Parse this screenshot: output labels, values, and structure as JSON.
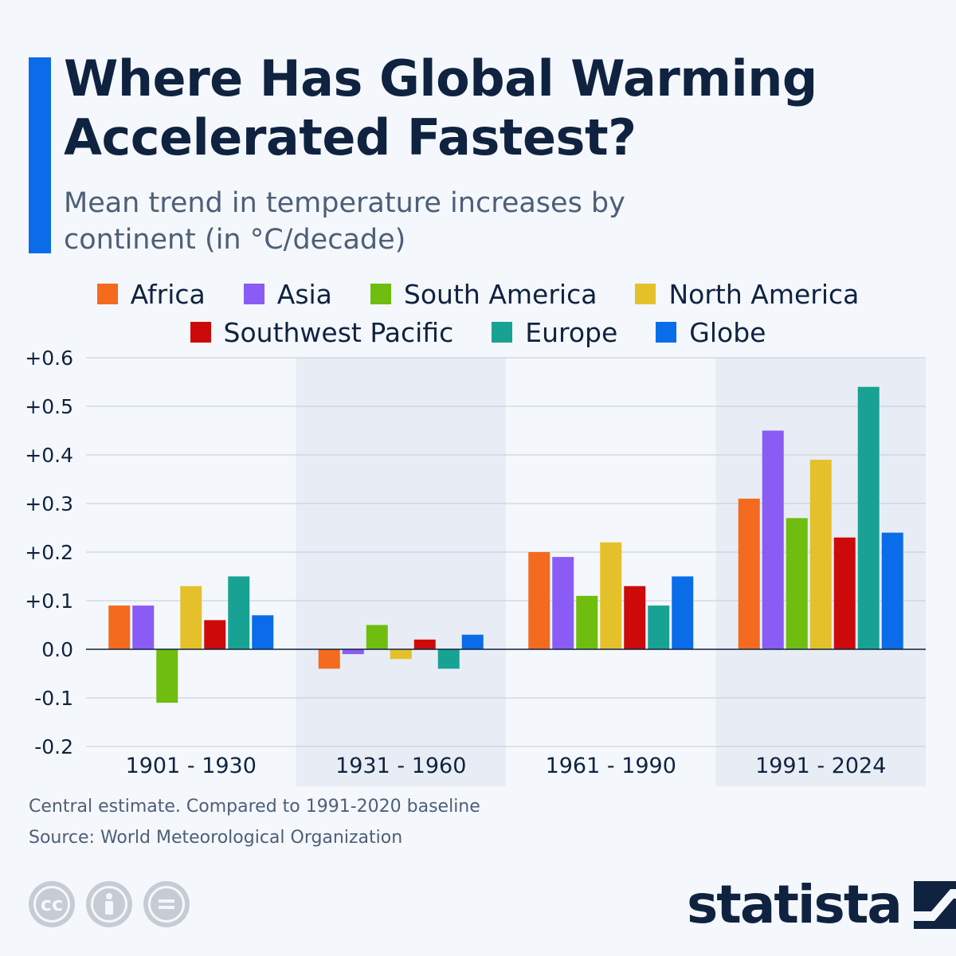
{
  "header": {
    "title": "Where Has Global Warming Accelerated Fastest?",
    "subtitle": "Mean trend in temperature increases by continent (in °C/decade)"
  },
  "legend": {
    "row1": [
      {
        "label": "Africa",
        "color": "#f46a1f"
      },
      {
        "label": "Asia",
        "color": "#8a5cf5"
      },
      {
        "label": "South America",
        "color": "#6fbd0e"
      },
      {
        "label": "North America",
        "color": "#e4c12b"
      }
    ],
    "row2": [
      {
        "label": "Southwest Pacific",
        "color": "#cc0a0a"
      },
      {
        "label": "Europe",
        "color": "#18a294"
      },
      {
        "label": "Globe",
        "color": "#0a6ce8"
      }
    ]
  },
  "chart_data": {
    "type": "bar",
    "categories": [
      "1901 - 1930",
      "1931 - 1960",
      "1961 - 1990",
      "1991 - 2024"
    ],
    "series": [
      {
        "name": "Africa",
        "color": "#f46a1f",
        "values": [
          0.09,
          -0.04,
          0.2,
          0.31
        ]
      },
      {
        "name": "Asia",
        "color": "#8a5cf5",
        "values": [
          0.09,
          -0.01,
          0.19,
          0.45
        ]
      },
      {
        "name": "South America",
        "color": "#6fbd0e",
        "values": [
          -0.11,
          0.05,
          0.11,
          0.27
        ]
      },
      {
        "name": "North America",
        "color": "#e4c12b",
        "values": [
          0.13,
          -0.02,
          0.22,
          0.39
        ]
      },
      {
        "name": "Southwest Pacific",
        "color": "#cc0a0a",
        "values": [
          0.06,
          0.02,
          0.13,
          0.23
        ]
      },
      {
        "name": "Europe",
        "color": "#18a294",
        "values": [
          0.15,
          -0.04,
          0.09,
          0.54
        ]
      },
      {
        "name": "Globe",
        "color": "#0a6ce8",
        "values": [
          0.07,
          0.03,
          0.15,
          0.24
        ]
      }
    ],
    "yticks": [
      {
        "value": 0.6,
        "label": "+0.6"
      },
      {
        "value": 0.5,
        "label": "+0.5"
      },
      {
        "value": 0.4,
        "label": "+0.4"
      },
      {
        "value": 0.3,
        "label": "+0.3"
      },
      {
        "value": 0.2,
        "label": "+0.2"
      },
      {
        "value": 0.1,
        "label": "+0.1"
      },
      {
        "value": 0.0,
        "label": "0.0"
      },
      {
        "value": -0.1,
        "label": "-0.1"
      },
      {
        "value": -0.2,
        "label": "-0.2"
      }
    ],
    "ylim": [
      -0.2,
      0.6
    ],
    "grid": true,
    "legend_position": "top"
  },
  "footer": {
    "note": "Central estimate. Compared to 1991-2020 baseline",
    "source": "Source: World Meteorological Organization",
    "logo": "statista",
    "license_icons": [
      "cc",
      "by",
      "nd"
    ]
  }
}
